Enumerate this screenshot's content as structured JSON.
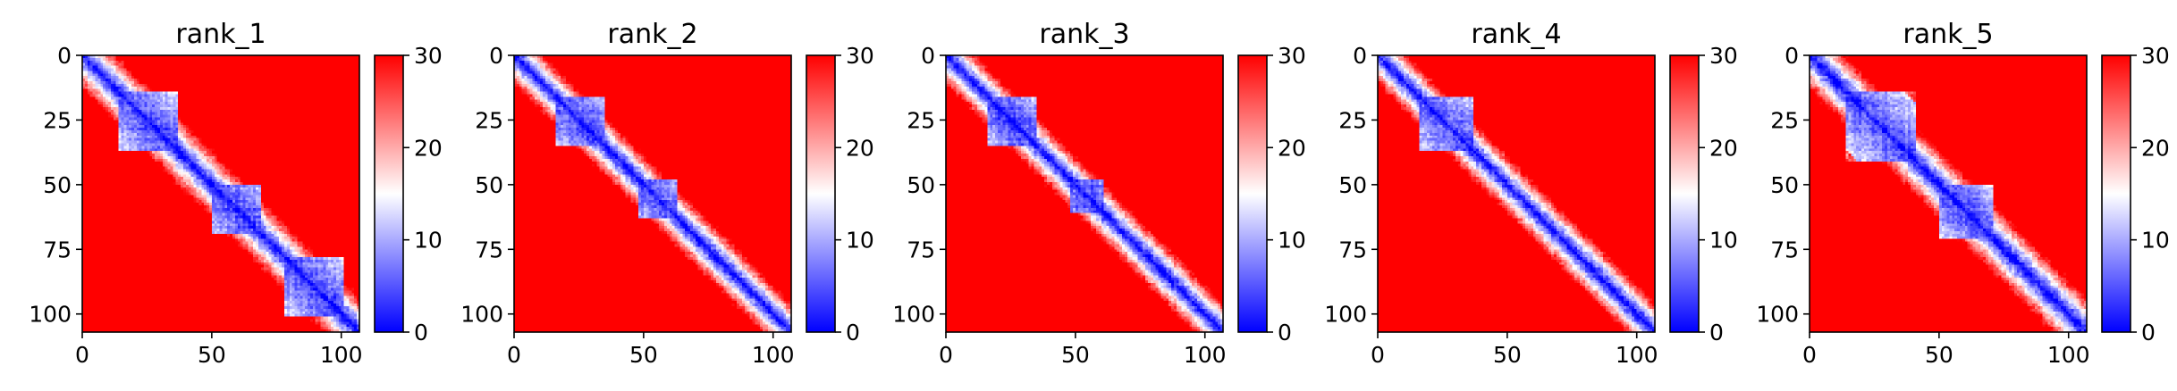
{
  "chart_data": [
    {
      "type": "heatmap",
      "title": "rank_1",
      "n": 107,
      "xlim": [
        0,
        107
      ],
      "ylim": [
        107,
        0
      ],
      "xticks": [
        0,
        50,
        100
      ],
      "yticks": [
        0,
        25,
        50,
        75,
        100
      ],
      "colorbar": {
        "range": [
          0,
          30
        ],
        "ticks": [
          0,
          10,
          20,
          30
        ],
        "colormap": "bwr",
        "low_color": "#0000ff",
        "mid_color": "#ffffff",
        "high_color": "#ff0000"
      },
      "diagonal_band_width": 7,
      "domain_blocks": [
        {
          "start": 14,
          "end": 36
        },
        {
          "start": 50,
          "end": 68
        },
        {
          "start": 78,
          "end": 100
        }
      ]
    },
    {
      "type": "heatmap",
      "title": "rank_2",
      "n": 107,
      "xlim": [
        0,
        107
      ],
      "ylim": [
        107,
        0
      ],
      "xticks": [
        0,
        50,
        100
      ],
      "yticks": [
        0,
        25,
        50,
        75,
        100
      ],
      "colorbar": {
        "range": [
          0,
          30
        ],
        "ticks": [
          0,
          10,
          20,
          30
        ],
        "colormap": "bwr",
        "low_color": "#0000ff",
        "mid_color": "#ffffff",
        "high_color": "#ff0000"
      },
      "diagonal_band_width": 6,
      "domain_blocks": [
        {
          "start": 16,
          "end": 34
        },
        {
          "start": 48,
          "end": 62
        }
      ]
    },
    {
      "type": "heatmap",
      "title": "rank_3",
      "n": 107,
      "xlim": [
        0,
        107
      ],
      "ylim": [
        107,
        0
      ],
      "xticks": [
        0,
        50,
        100
      ],
      "yticks": [
        0,
        25,
        50,
        75,
        100
      ],
      "colorbar": {
        "range": [
          0,
          30
        ],
        "ticks": [
          0,
          10,
          20,
          30
        ],
        "colormap": "bwr",
        "low_color": "#0000ff",
        "mid_color": "#ffffff",
        "high_color": "#ff0000"
      },
      "diagonal_band_width": 6,
      "domain_blocks": [
        {
          "start": 16,
          "end": 34
        },
        {
          "start": 48,
          "end": 60
        }
      ]
    },
    {
      "type": "heatmap",
      "title": "rank_4",
      "n": 107,
      "xlim": [
        0,
        107
      ],
      "ylim": [
        107,
        0
      ],
      "xticks": [
        0,
        50,
        100
      ],
      "yticks": [
        0,
        25,
        50,
        75,
        100
      ],
      "colorbar": {
        "range": [
          0,
          30
        ],
        "ticks": [
          0,
          10,
          20,
          30
        ],
        "colormap": "bwr",
        "low_color": "#0000ff",
        "mid_color": "#ffffff",
        "high_color": "#ff0000"
      },
      "diagonal_band_width": 6,
      "domain_blocks": [
        {
          "start": 16,
          "end": 36
        }
      ]
    },
    {
      "type": "heatmap",
      "title": "rank_5",
      "n": 107,
      "xlim": [
        0,
        107
      ],
      "ylim": [
        107,
        0
      ],
      "xticks": [
        0,
        50,
        100
      ],
      "yticks": [
        0,
        25,
        50,
        75,
        100
      ],
      "colorbar": {
        "range": [
          0,
          30
        ],
        "ticks": [
          0,
          10,
          20,
          30
        ],
        "colormap": "bwr",
        "low_color": "#0000ff",
        "mid_color": "#ffffff",
        "high_color": "#ff0000"
      },
      "diagonal_band_width": 7,
      "domain_blocks": [
        {
          "start": 14,
          "end": 40
        },
        {
          "start": 50,
          "end": 70
        }
      ]
    }
  ]
}
